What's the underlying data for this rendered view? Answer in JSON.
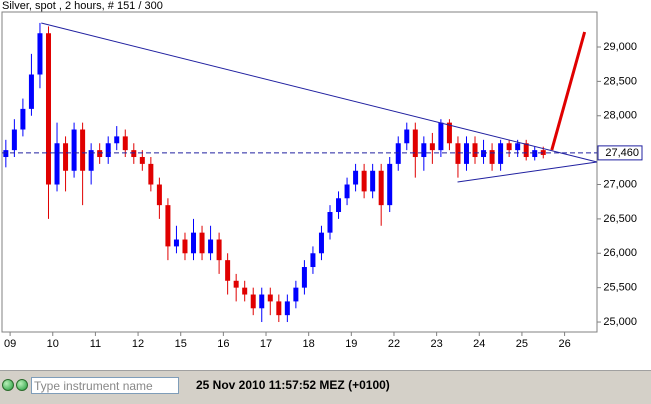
{
  "chart_data": {
    "type": "candlestick",
    "title": "Silver, spot , 2 hours, # 151 / 300",
    "x": [
      -0.1,
      0.1,
      0.3,
      0.5,
      0.7,
      0.9,
      1.1,
      1.3,
      1.5,
      1.7,
      1.9,
      2.1,
      2.3,
      2.5,
      2.7,
      2.9,
      3.1,
      3.3,
      3.5,
      3.7,
      3.9,
      4.1,
      4.3,
      4.5,
      4.7,
      4.9,
      5.1,
      5.3,
      5.5,
      5.7,
      5.9,
      6.1,
      6.3,
      6.5,
      6.7,
      6.9,
      7.1,
      7.3,
      7.5,
      7.7,
      7.9,
      8.1,
      8.3,
      8.5,
      8.7,
      8.9,
      9.1,
      9.3,
      9.5,
      9.7,
      9.9,
      10.1,
      10.3,
      10.5,
      10.7,
      10.9,
      11.1,
      11.3,
      11.5,
      11.7,
      11.9,
      12.1,
      12.3,
      12.5
    ],
    "open": [
      27400,
      27500,
      27800,
      28100,
      28600,
      29200,
      27000,
      27600,
      27200,
      27800,
      27200,
      27500,
      27400,
      27600,
      27700,
      27500,
      27400,
      27300,
      27000,
      26700,
      26100,
      26200,
      26000,
      26300,
      26000,
      26200,
      25900,
      25600,
      25500,
      25400,
      25200,
      25400,
      25300,
      25100,
      25300,
      25500,
      25800,
      26000,
      26300,
      26600,
      26800,
      27000,
      27200,
      26900,
      27200,
      26700,
      27300,
      27600,
      27800,
      27400,
      27600,
      27500,
      27900,
      27600,
      27300,
      27600,
      27400,
      27500,
      27300,
      27600,
      27500,
      27600,
      27400,
      27500
    ],
    "high": [
      27650,
      27950,
      28250,
      28900,
      29350,
      29300,
      27900,
      27700,
      27900,
      27900,
      27600,
      27600,
      27700,
      27850,
      27800,
      27600,
      27500,
      27400,
      27100,
      26800,
      26400,
      26300,
      26500,
      26400,
      26400,
      26300,
      26000,
      25700,
      25600,
      25500,
      25500,
      25500,
      25400,
      25400,
      25600,
      25900,
      26100,
      26400,
      26700,
      26900,
      27100,
      27300,
      27300,
      27300,
      27300,
      27400,
      27700,
      27900,
      27900,
      27700,
      27750,
      27950,
      27950,
      27700,
      27700,
      27700,
      27650,
      27600,
      27650,
      27650,
      27650,
      27650,
      27550,
      27550
    ],
    "low": [
      27250,
      27400,
      27700,
      28000,
      28400,
      26500,
      26900,
      26900,
      27100,
      26700,
      27000,
      27300,
      27300,
      27500,
      27400,
      27300,
      27200,
      26900,
      26500,
      25900,
      26000,
      25900,
      25900,
      25900,
      25900,
      25700,
      25400,
      25300,
      25300,
      25100,
      25000,
      25100,
      25000,
      25000,
      25200,
      25400,
      25700,
      25900,
      26200,
      26500,
      26700,
      26900,
      26800,
      26800,
      26400,
      26600,
      27200,
      27500,
      27100,
      27200,
      27300,
      27400,
      27500,
      27100,
      27200,
      27300,
      27300,
      27200,
      27200,
      27400,
      27400,
      27350,
      27350,
      27380
    ],
    "close": [
      27500,
      27800,
      28100,
      28600,
      29200,
      27000,
      27600,
      27200,
      27800,
      27200,
      27500,
      27400,
      27600,
      27700,
      27500,
      27400,
      27300,
      27000,
      26700,
      26100,
      26200,
      26000,
      26300,
      26000,
      26200,
      25900,
      25600,
      25500,
      25400,
      25200,
      25400,
      25300,
      25100,
      25300,
      25500,
      25800,
      26000,
      26300,
      26600,
      26800,
      27000,
      27200,
      26900,
      27200,
      26700,
      27300,
      27600,
      27800,
      27400,
      27600,
      27500,
      27900,
      27600,
      27300,
      27600,
      27400,
      27500,
      27300,
      27600,
      27500,
      27600,
      27400,
      27500,
      27430
    ],
    "up_color": "#0000ff",
    "down_color": "#e00000",
    "xlim": [
      -0.19,
      13.76
    ],
    "ylim": [
      24855,
      29509
    ],
    "xticks": [
      {
        "value": 0,
        "label": "09"
      },
      {
        "value": 1,
        "label": "10"
      },
      {
        "value": 2,
        "label": "11"
      },
      {
        "value": 3,
        "label": "12"
      },
      {
        "value": 4,
        "label": "15"
      },
      {
        "value": 5,
        "label": "16"
      },
      {
        "value": 6,
        "label": "17"
      },
      {
        "value": 7,
        "label": "18"
      },
      {
        "value": 8,
        "label": "19"
      },
      {
        "value": 9,
        "label": "22"
      },
      {
        "value": 10,
        "label": "23"
      },
      {
        "value": 11,
        "label": "24"
      },
      {
        "value": 12,
        "label": "25"
      },
      {
        "value": 13,
        "label": "26"
      }
    ],
    "yticks": [
      {
        "value": 25000,
        "label": "25,000"
      },
      {
        "value": 25500,
        "label": "25,500"
      },
      {
        "value": 26000,
        "label": "26,000"
      },
      {
        "value": 26500,
        "label": "26,500"
      },
      {
        "value": 27000,
        "label": "27,000"
      },
      {
        "value": 27500,
        "label": "27,500"
      },
      {
        "value": 28000,
        "label": "28,000"
      },
      {
        "value": 28500,
        "label": "28,500"
      },
      {
        "value": 29000,
        "label": "29,000"
      }
    ],
    "current_price": {
      "value": 27460,
      "label": "27,460"
    },
    "trendlines": [
      {
        "color": "#2020a0",
        "x": [
          0.73,
          13.76
        ],
        "y": [
          29349,
          27327
        ]
      },
      {
        "color": "#2020a0",
        "x": [
          10.49,
          13.76
        ],
        "y": [
          27036,
          27327
        ]
      },
      {
        "color": "#e00000",
        "x": [
          12.7,
          13.47
        ],
        "y": [
          27502,
          29218
        ]
      }
    ]
  },
  "toolbar": {
    "placeholder": "Type instrument name",
    "datetime": "25 Nov 2010 11:57:52  MEZ (+0100)"
  }
}
